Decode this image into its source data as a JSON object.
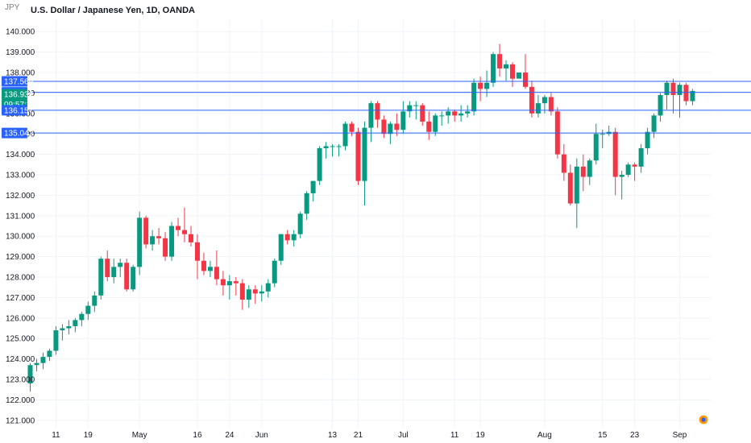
{
  "header": {
    "corner_label": "JPY",
    "title": "U.S. Dollar / Japanese Yen, 1D, OANDA"
  },
  "colors": {
    "up": "#089981",
    "down": "#f23645",
    "hline": "#2962ff",
    "grid": "#f0f3fa",
    "axis_text": "#131722",
    "price_flag": "#089981"
  },
  "chart_data": {
    "type": "candlestick",
    "title": "U.S. Dollar / Japanese Yen, 1D, OANDA",
    "ylim": [
      120.6,
      140.6
    ],
    "yticks": [
      "121.000",
      "122.000",
      "123.000",
      "124.000",
      "125.000",
      "126.000",
      "127.000",
      "128.000",
      "129.000",
      "130.000",
      "131.000",
      "132.000",
      "133.000",
      "134.000",
      "135.000",
      "136.000",
      "137.000",
      "138.000",
      "139.000",
      "140.000"
    ],
    "xticks": [
      {
        "index": 4,
        "label": "11"
      },
      {
        "index": 9,
        "label": "19"
      },
      {
        "index": 17,
        "label": "May"
      },
      {
        "index": 26,
        "label": "16"
      },
      {
        "index": 31,
        "label": "24"
      },
      {
        "index": 36,
        "label": "Jun"
      },
      {
        "index": 47,
        "label": "13"
      },
      {
        "index": 51,
        "label": "21"
      },
      {
        "index": 58,
        "label": "Jul"
      },
      {
        "index": 66,
        "label": "11"
      },
      {
        "index": 70,
        "label": "19"
      },
      {
        "index": 80,
        "label": "Aug"
      },
      {
        "index": 89,
        "label": "15"
      },
      {
        "index": 94,
        "label": "23"
      },
      {
        "index": 101,
        "label": "Sep"
      }
    ],
    "candles": [
      [
        122.8,
        123.8,
        122.4,
        123.7
      ],
      [
        123.7,
        124.0,
        123.4,
        123.8
      ],
      [
        123.8,
        124.3,
        123.5,
        124.1
      ],
      [
        124.1,
        124.5,
        123.9,
        124.4
      ],
      [
        124.4,
        125.6,
        124.2,
        125.4
      ],
      [
        125.4,
        125.7,
        124.9,
        125.5
      ],
      [
        125.5,
        125.9,
        125.2,
        125.6
      ],
      [
        125.6,
        126.0,
        125.3,
        125.9
      ],
      [
        125.9,
        126.3,
        125.6,
        126.2
      ],
      [
        126.2,
        126.8,
        125.9,
        126.6
      ],
      [
        126.6,
        127.3,
        126.3,
        127.1
      ],
      [
        127.1,
        129.0,
        126.9,
        128.9
      ],
      [
        128.9,
        129.3,
        127.8,
        128.0
      ],
      [
        128.0,
        128.9,
        127.7,
        128.5
      ],
      [
        128.5,
        128.9,
        128.0,
        128.7
      ],
      [
        128.7,
        128.9,
        127.3,
        127.4
      ],
      [
        127.4,
        128.6,
        127.3,
        128.5
      ],
      [
        128.5,
        131.2,
        128.1,
        130.9
      ],
      [
        130.9,
        131.0,
        129.4,
        129.6
      ],
      [
        129.6,
        130.3,
        129.3,
        130.0
      ],
      [
        130.0,
        130.4,
        129.6,
        129.9
      ],
      [
        129.9,
        130.2,
        128.8,
        129.0
      ],
      [
        129.0,
        130.7,
        128.8,
        130.5
      ],
      [
        130.5,
        130.9,
        130.0,
        130.3
      ],
      [
        130.3,
        131.4,
        129.7,
        130.1
      ],
      [
        130.1,
        130.5,
        129.5,
        129.7
      ],
      [
        129.7,
        130.1,
        127.9,
        128.8
      ],
      [
        128.8,
        129.2,
        128.1,
        128.3
      ],
      [
        128.3,
        128.8,
        128.0,
        128.5
      ],
      [
        128.5,
        129.3,
        127.6,
        127.9
      ],
      [
        127.9,
        128.3,
        127.1,
        127.6
      ],
      [
        127.6,
        128.1,
        126.9,
        127.8
      ],
      [
        127.8,
        128.0,
        127.1,
        127.7
      ],
      [
        127.7,
        127.9,
        126.4,
        126.9
      ],
      [
        126.9,
        127.6,
        126.5,
        127.4
      ],
      [
        127.4,
        127.6,
        126.7,
        127.2
      ],
      [
        127.2,
        127.6,
        126.8,
        127.3
      ],
      [
        127.3,
        127.9,
        127.0,
        127.7
      ],
      [
        127.7,
        128.9,
        127.5,
        128.8
      ],
      [
        128.8,
        130.1,
        128.6,
        130.1
      ],
      [
        130.1,
        130.3,
        129.6,
        129.8
      ],
      [
        129.8,
        130.3,
        129.5,
        130.1
      ],
      [
        130.1,
        131.2,
        129.9,
        131.1
      ],
      [
        131.1,
        132.2,
        130.8,
        132.1
      ],
      [
        132.1,
        132.7,
        131.7,
        132.7
      ],
      [
        132.7,
        134.4,
        132.5,
        134.3
      ],
      [
        134.3,
        134.6,
        133.8,
        134.4
      ],
      [
        134.4,
        134.5,
        133.9,
        134.4
      ],
      [
        134.4,
        134.5,
        133.9,
        134.4
      ],
      [
        134.4,
        135.6,
        134.2,
        135.5
      ],
      [
        135.5,
        135.6,
        134.9,
        135.1
      ],
      [
        135.1,
        135.3,
        132.5,
        132.7
      ],
      [
        132.7,
        135.6,
        131.5,
        135.3
      ],
      [
        135.3,
        136.6,
        134.6,
        136.5
      ],
      [
        136.5,
        136.6,
        135.3,
        135.7
      ],
      [
        135.7,
        135.9,
        134.8,
        135.0
      ],
      [
        135.0,
        135.6,
        134.5,
        135.5
      ],
      [
        135.5,
        136.0,
        134.9,
        135.2
      ],
      [
        135.2,
        136.6,
        135.0,
        136.1
      ],
      [
        136.1,
        136.6,
        135.8,
        136.4
      ],
      [
        136.4,
        136.6,
        135.7,
        136.4
      ],
      [
        136.4,
        136.5,
        135.4,
        135.6
      ],
      [
        135.6,
        136.1,
        134.7,
        135.1
      ],
      [
        135.1,
        136.0,
        134.9,
        135.9
      ],
      [
        135.9,
        136.1,
        135.4,
        135.9
      ],
      [
        135.9,
        136.3,
        135.5,
        136.1
      ],
      [
        136.1,
        136.2,
        135.6,
        135.9
      ],
      [
        135.9,
        136.4,
        135.6,
        136.0
      ],
      [
        136.0,
        136.4,
        135.8,
        136.1
      ],
      [
        136.1,
        137.7,
        135.9,
        137.5
      ],
      [
        137.5,
        137.8,
        136.6,
        137.2
      ],
      [
        137.2,
        138.1,
        136.8,
        137.5
      ],
      [
        137.5,
        139.0,
        137.3,
        138.9
      ],
      [
        138.9,
        139.4,
        137.8,
        138.2
      ],
      [
        138.2,
        138.6,
        137.6,
        138.4
      ],
      [
        138.4,
        138.5,
        137.3,
        137.7
      ],
      [
        137.7,
        138.0,
        137.7,
        138.0
      ],
      [
        138.0,
        138.9,
        137.2,
        137.3
      ],
      [
        137.3,
        137.6,
        135.8,
        136.0
      ],
      [
        136.0,
        136.9,
        135.8,
        136.5
      ],
      [
        136.5,
        136.9,
        136.0,
        136.8
      ],
      [
        136.8,
        137.0,
        135.9,
        136.1
      ],
      [
        136.1,
        136.3,
        133.8,
        134.0
      ],
      [
        134.0,
        134.5,
        132.7,
        133.1
      ],
      [
        133.1,
        133.5,
        131.5,
        131.6
      ],
      [
        131.6,
        133.8,
        130.4,
        133.4
      ],
      [
        133.4,
        134.0,
        132.2,
        132.9
      ],
      [
        132.9,
        133.8,
        132.5,
        133.7
      ],
      [
        133.7,
        135.5,
        133.5,
        135.0
      ],
      [
        135.0,
        135.2,
        134.3,
        135.0
      ],
      [
        135.0,
        135.4,
        134.9,
        135.1
      ],
      [
        135.1,
        135.3,
        132.0,
        132.9
      ],
      [
        132.9,
        133.2,
        131.8,
        133.0
      ],
      [
        133.0,
        133.6,
        132.9,
        133.5
      ],
      [
        133.5,
        133.6,
        132.7,
        133.4
      ],
      [
        133.4,
        134.5,
        133.1,
        134.3
      ],
      [
        134.3,
        135.3,
        134.0,
        135.1
      ],
      [
        135.1,
        136.0,
        134.8,
        135.9
      ],
      [
        135.9,
        137.0,
        135.6,
        136.9
      ],
      [
        136.9,
        137.6,
        136.2,
        137.5
      ],
      [
        137.5,
        137.7,
        136.0,
        136.9
      ],
      [
        136.9,
        137.5,
        135.8,
        137.4
      ],
      [
        137.4,
        137.5,
        136.4,
        136.6
      ],
      [
        136.6,
        137.2,
        136.4,
        137.1
      ]
    ],
    "horizontal_lines": [
      {
        "price": 137.569,
        "label": "137.569"
      },
      {
        "price": 137.031,
        "label": "137.031"
      },
      {
        "price": 136.157,
        "label": "136.157"
      },
      {
        "price": 135.042,
        "label": "135.042"
      }
    ],
    "last_price": {
      "price": 136.939,
      "label": "136.939",
      "countdown": "09:57:34"
    }
  }
}
